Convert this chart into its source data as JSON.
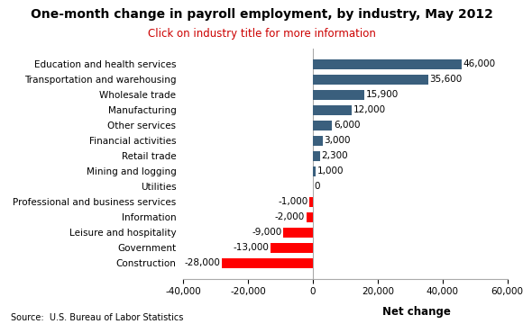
{
  "title": "One-month change in payroll employment, by industry, May 2012",
  "subtitle": "Click on industry title for more information",
  "categories": [
    "Construction",
    "Government",
    "Leisure and hospitality",
    "Information",
    "Professional and business services",
    "Utilities",
    "Mining and logging",
    "Retail trade",
    "Financial activities",
    "Other services",
    "Manufacturing",
    "Wholesale trade",
    "Transportation and warehousing",
    "Education and health services"
  ],
  "values": [
    -28000,
    -13000,
    -9000,
    -2000,
    -1000,
    0,
    1000,
    2300,
    3000,
    6000,
    12000,
    15900,
    35600,
    46000
  ],
  "labels": [
    "-28,000",
    "-13,000",
    "-9,000",
    "-2,000",
    "-1,000",
    "0",
    "1,000",
    "2,300",
    "3,000",
    "6,000",
    "12,000",
    "15,900",
    "35,600",
    "46,000"
  ],
  "positive_color": "#3a5f7d",
  "negative_color": "#ff0000",
  "xlabel": "Net change",
  "source": "Source:  U.S. Bureau of Labor Statistics",
  "xlim": [
    -40000,
    60000
  ],
  "xticks": [
    -40000,
    -20000,
    0,
    20000,
    40000,
    60000
  ],
  "title_fontsize": 10,
  "subtitle_fontsize": 8.5,
  "bar_label_fontsize": 7.5,
  "ytick_fontsize": 7.5,
  "xtick_fontsize": 7.5,
  "xlabel_fontsize": 8.5,
  "source_fontsize": 7
}
